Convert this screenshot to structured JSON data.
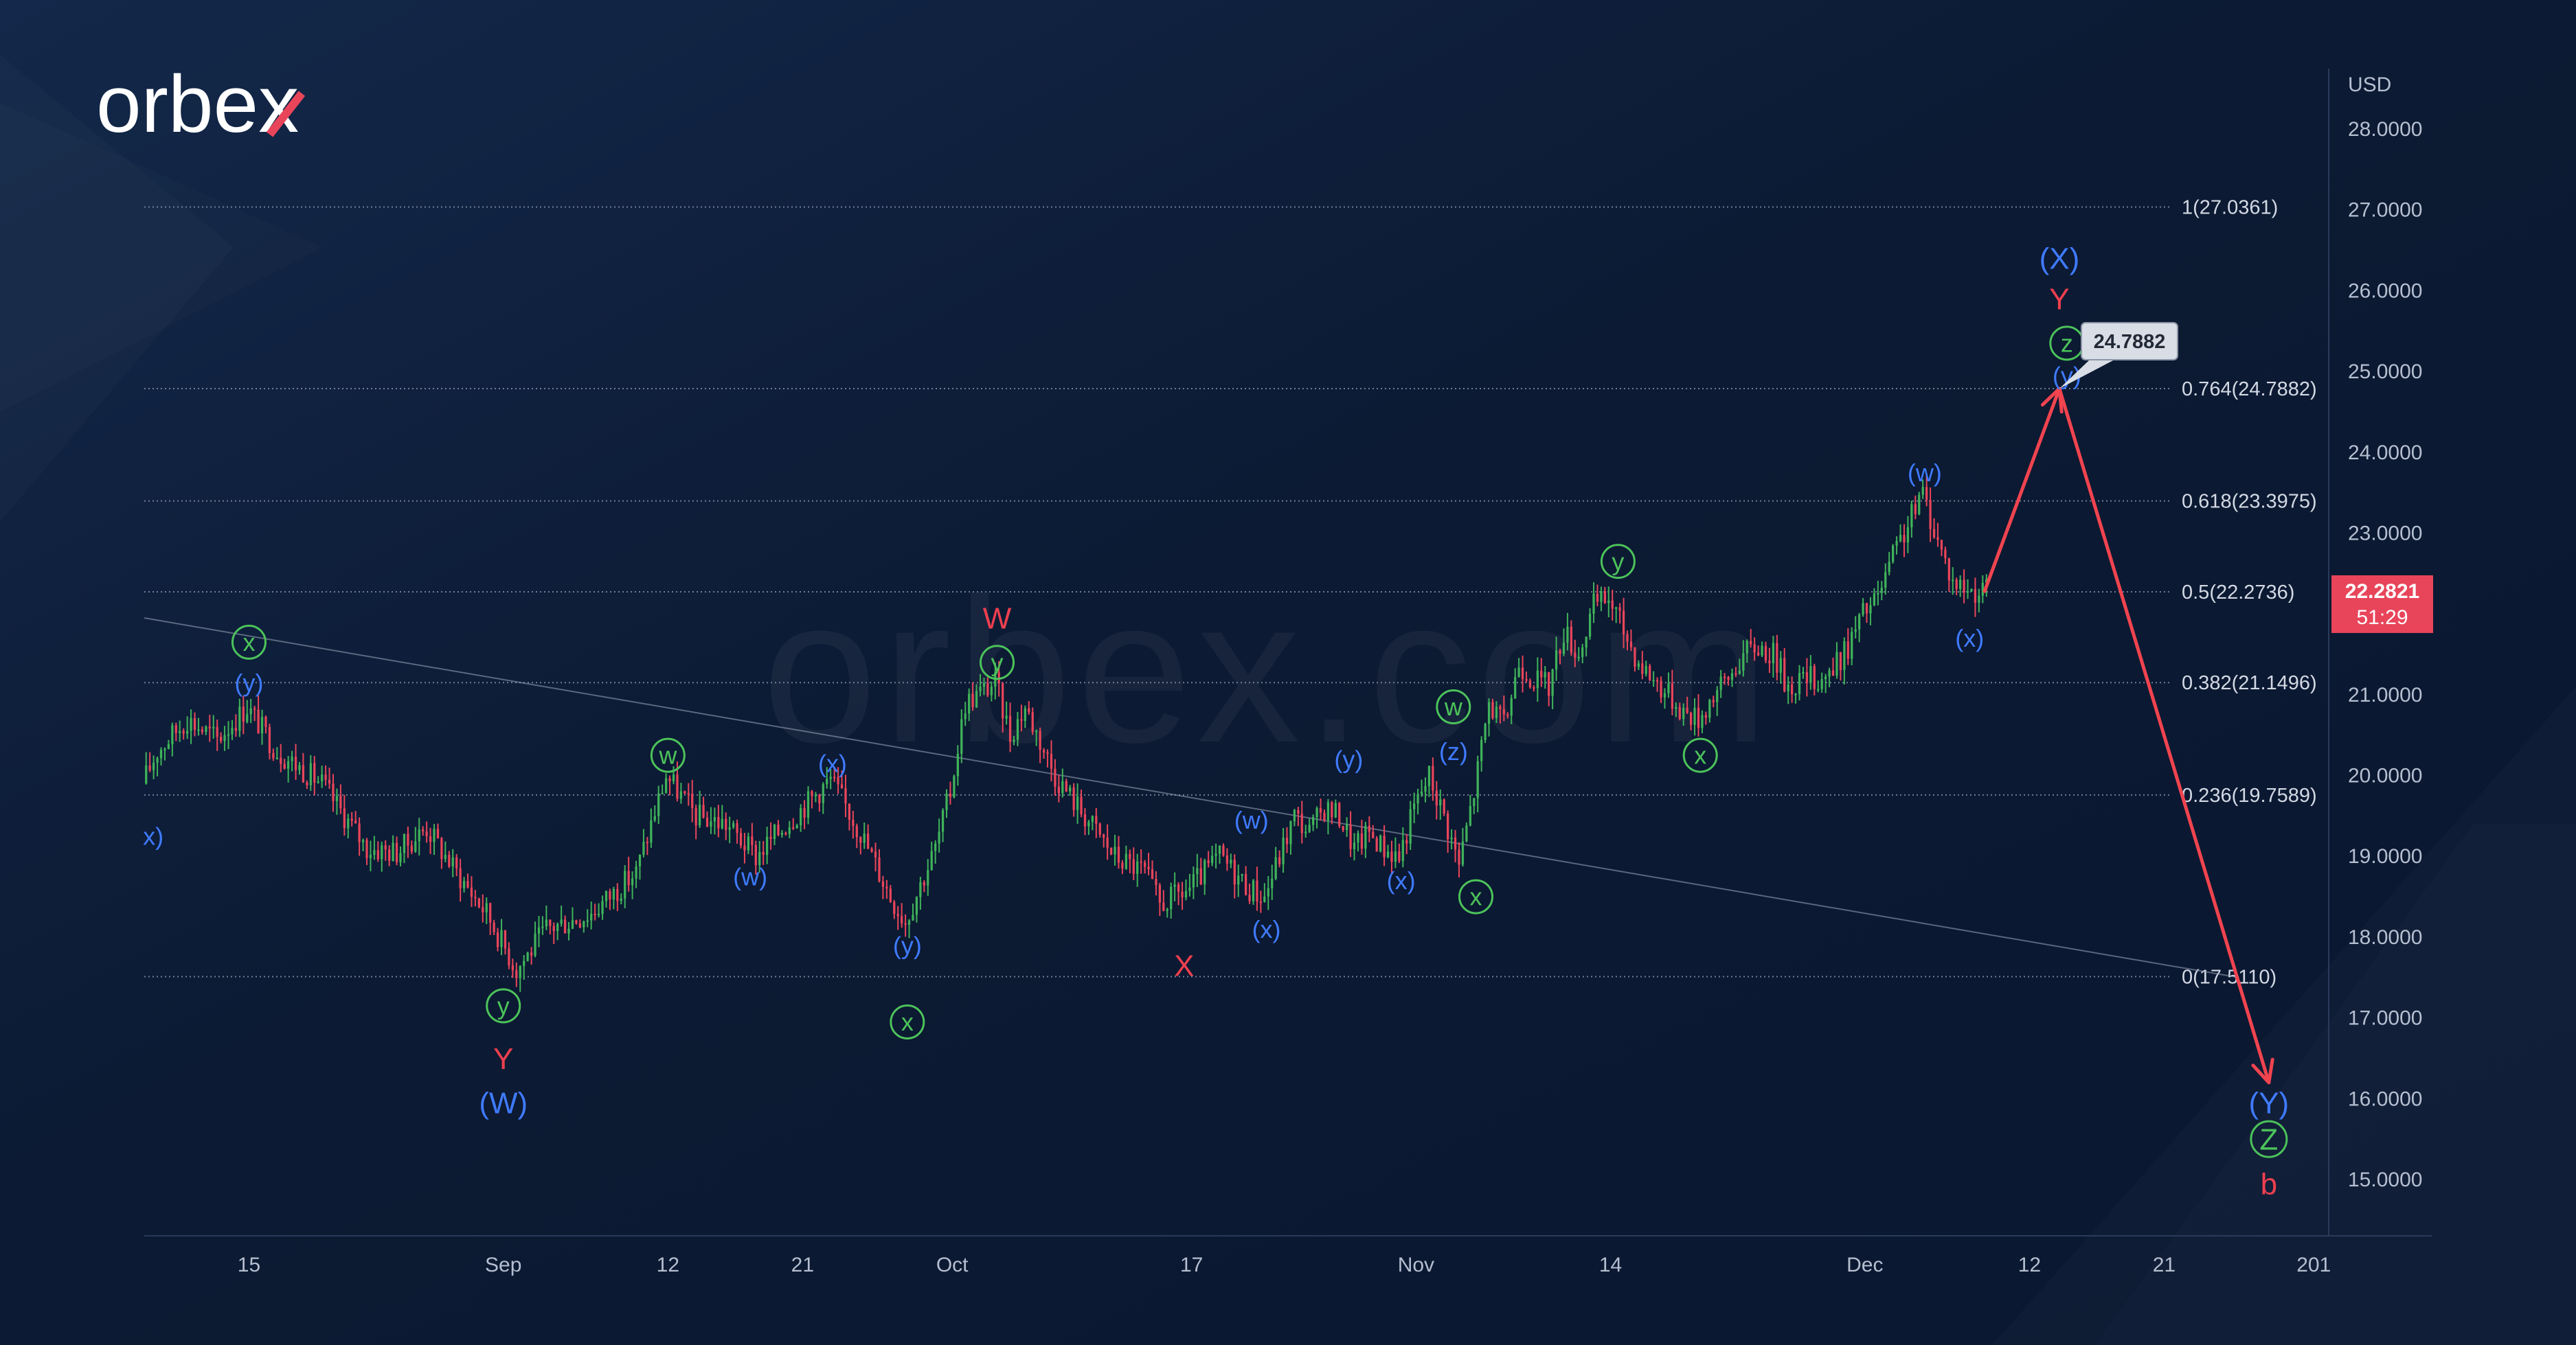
{
  "brand": {
    "logo_text": "orbex",
    "watermark": "orbex.com"
  },
  "colors": {
    "background": "#0c1a33",
    "bull_candle": "#3fb25a",
    "bear_candle": "#e8455a",
    "wave_blue": "#3f7bff",
    "wave_red": "#ee3f4f",
    "wave_green": "#4cc35a",
    "projection_arrow": "#f0444f",
    "price_tag": "#e8455a"
  },
  "chart_data": {
    "type": "candlestick",
    "currency_label": "USD",
    "y_ticks": [
      "28.0000",
      "27.0000",
      "26.0000",
      "25.0000",
      "24.0000",
      "23.0000",
      "22.0000",
      "21.0000",
      "20.0000",
      "19.0000",
      "18.0000",
      "17.0000",
      "16.0000",
      "15.0000"
    ],
    "ylim": [
      14.3,
      28.5
    ],
    "x_ticks": [
      {
        "label": "15",
        "day": 15
      },
      {
        "label": "Sep",
        "day": 32
      },
      {
        "label": "12",
        "day": 43
      },
      {
        "label": "21",
        "day": 52
      },
      {
        "label": "Oct",
        "day": 62
      },
      {
        "label": "17",
        "day": 78
      },
      {
        "label": "Nov",
        "day": 93
      },
      {
        "label": "14",
        "day": 106
      },
      {
        "label": "Dec",
        "day": 123
      },
      {
        "label": "12",
        "day": 134
      },
      {
        "label": "21",
        "day": 143
      },
      {
        "label": "201",
        "day": 153
      }
    ],
    "price_path": [
      [
        8,
        19.9
      ],
      [
        9,
        20.3
      ],
      [
        11,
        20.7
      ],
      [
        13,
        20.45
      ],
      [
        15,
        20.85
      ],
      [
        17,
        20.3
      ],
      [
        20,
        19.9
      ],
      [
        23,
        19.1
      ],
      [
        25,
        19.05
      ],
      [
        27,
        19.35
      ],
      [
        29,
        18.8
      ],
      [
        31,
        18.3
      ],
      [
        33,
        17.6
      ],
      [
        35,
        18.1
      ],
      [
        38,
        18.3
      ],
      [
        41,
        18.8
      ],
      [
        43,
        20.0
      ],
      [
        45,
        19.5
      ],
      [
        47,
        19.4
      ],
      [
        49,
        19.0
      ],
      [
        51,
        19.4
      ],
      [
        54,
        19.95
      ],
      [
        56,
        19.3
      ],
      [
        58,
        18.5
      ],
      [
        59,
        18.2
      ],
      [
        61,
        19.1
      ],
      [
        62,
        19.8
      ],
      [
        63,
        20.9
      ],
      [
        65,
        21.15
      ],
      [
        66,
        20.5
      ],
      [
        67,
        20.85
      ],
      [
        69,
        20.0
      ],
      [
        71,
        19.5
      ],
      [
        73,
        19.0
      ],
      [
        75,
        18.8
      ],
      [
        76,
        18.4
      ],
      [
        78,
        18.6
      ],
      [
        80,
        19.0
      ],
      [
        82,
        18.6
      ],
      [
        83,
        18.5
      ],
      [
        85,
        19.5
      ],
      [
        86,
        19.3
      ],
      [
        87,
        19.6
      ],
      [
        88,
        19.5
      ],
      [
        89,
        19.1
      ],
      [
        90,
        19.3
      ],
      [
        91,
        19.1
      ],
      [
        92,
        19.0
      ],
      [
        93,
        19.6
      ],
      [
        94,
        20.0
      ],
      [
        95,
        19.5
      ],
      [
        96,
        18.9
      ],
      [
        97,
        19.8
      ],
      [
        98,
        20.9
      ],
      [
        99,
        20.6
      ],
      [
        100,
        21.4
      ],
      [
        101,
        21.2
      ],
      [
        102,
        21.1
      ],
      [
        103,
        21.8
      ],
      [
        104,
        21.5
      ],
      [
        105,
        22.1
      ],
      [
        106,
        22.2
      ],
      [
        107,
        21.8
      ],
      [
        108,
        21.4
      ],
      [
        110,
        21.0
      ],
      [
        111,
        20.8
      ],
      [
        112,
        20.7
      ],
      [
        113,
        21.0
      ],
      [
        114,
        21.2
      ],
      [
        115,
        21.5
      ],
      [
        116,
        21.6
      ],
      [
        117,
        21.5
      ],
      [
        118,
        21.1
      ],
      [
        119,
        21.2
      ],
      [
        120,
        21.2
      ],
      [
        121,
        21.3
      ],
      [
        122,
        21.6
      ],
      [
        123,
        22.0
      ],
      [
        124,
        22.2
      ],
      [
        125,
        22.7
      ],
      [
        126,
        23.1
      ],
      [
        127,
        23.5
      ],
      [
        128,
        22.9
      ],
      [
        129,
        22.4
      ],
      [
        130,
        22.3
      ],
      [
        131,
        22.28
      ]
    ],
    "trendline": {
      "from": {
        "day": 8,
        "price": 21.95
      },
      "to": {
        "day": 148,
        "price": 17.5
      }
    },
    "fib_levels": [
      {
        "label": "1(27.0361)",
        "price": 27.0361
      },
      {
        "label": "0.764(24.7882)",
        "price": 24.7882
      },
      {
        "label": "0.618(23.3975)",
        "price": 23.3975
      },
      {
        "label": "0.5(22.2736)",
        "price": 22.2736
      },
      {
        "label": "0.382(21.1496)",
        "price": 21.1496
      },
      {
        "label": "0.236(19.7589)",
        "price": 19.7589
      },
      {
        "label": "0(17.5110)",
        "price": 17.511
      }
    ],
    "current_price": {
      "label": "22.2821",
      "countdown": "51:29",
      "price": 22.2821
    },
    "target_tag": {
      "label": "24.7882",
      "price": 24.7882
    },
    "projection": [
      {
        "day": 131,
        "price": 22.28
      },
      {
        "day": 136,
        "price": 24.7882
      },
      {
        "day": 150,
        "price": 16.2
      }
    ],
    "wave_labels": [
      {
        "text": "x)",
        "day": 8.6,
        "price": 19.25,
        "color": "blue",
        "circled": false,
        "size": "small"
      },
      {
        "text": "(y)",
        "day": 15,
        "price": 21.15,
        "color": "blue",
        "circled": false,
        "size": "small"
      },
      {
        "text": "x",
        "day": 15,
        "price": 21.65,
        "color": "green",
        "circled": true,
        "size": "small"
      },
      {
        "text": "y",
        "day": 32,
        "price": 17.15,
        "color": "green",
        "circled": true,
        "size": "small"
      },
      {
        "text": "Y",
        "day": 32,
        "price": 16.5,
        "color": "red",
        "circled": false,
        "size": "large"
      },
      {
        "text": "(W)",
        "day": 32,
        "price": 15.95,
        "color": "blue",
        "circled": false,
        "size": "large"
      },
      {
        "text": "w",
        "day": 43,
        "price": 20.25,
        "color": "green",
        "circled": true,
        "size": "small"
      },
      {
        "text": "(w)",
        "day": 48.5,
        "price": 18.75,
        "color": "blue",
        "circled": false,
        "size": "small"
      },
      {
        "text": "(x)",
        "day": 54,
        "price": 20.15,
        "color": "blue",
        "circled": false,
        "size": "small"
      },
      {
        "text": "(y)",
        "day": 59,
        "price": 17.9,
        "color": "blue",
        "circled": false,
        "size": "small"
      },
      {
        "text": "x",
        "day": 59,
        "price": 16.95,
        "color": "green",
        "circled": true,
        "size": "small"
      },
      {
        "text": "W",
        "day": 65,
        "price": 21.95,
        "color": "red",
        "circled": false,
        "size": "large"
      },
      {
        "text": "y",
        "day": 65,
        "price": 21.4,
        "color": "green",
        "circled": true,
        "size": "small"
      },
      {
        "text": "X",
        "day": 77.5,
        "price": 17.65,
        "color": "red",
        "circled": false,
        "size": "large"
      },
      {
        "text": "(w)",
        "day": 82,
        "price": 19.45,
        "color": "blue",
        "circled": false,
        "size": "small"
      },
      {
        "text": "(x)",
        "day": 83,
        "price": 18.1,
        "color": "blue",
        "circled": false,
        "size": "small"
      },
      {
        "text": "(y)",
        "day": 88.5,
        "price": 20.2,
        "color": "blue",
        "circled": false,
        "size": "small"
      },
      {
        "text": "(x)",
        "day": 92,
        "price": 18.7,
        "color": "blue",
        "circled": false,
        "size": "small"
      },
      {
        "text": "(z)",
        "day": 95.5,
        "price": 20.3,
        "color": "blue",
        "circled": false,
        "size": "small"
      },
      {
        "text": "w",
        "day": 95.5,
        "price": 20.85,
        "color": "green",
        "circled": true,
        "size": "small"
      },
      {
        "text": "x",
        "day": 97,
        "price": 18.5,
        "color": "green",
        "circled": true,
        "size": "small"
      },
      {
        "text": "y",
        "day": 106.5,
        "price": 22.65,
        "color": "green",
        "circled": true,
        "size": "small"
      },
      {
        "text": "x",
        "day": 112,
        "price": 20.25,
        "color": "green",
        "circled": true,
        "size": "small"
      },
      {
        "text": "(w)",
        "day": 127,
        "price": 23.75,
        "color": "blue",
        "circled": false,
        "size": "small"
      },
      {
        "text": "(x)",
        "day": 130,
        "price": 21.7,
        "color": "blue",
        "circled": false,
        "size": "small"
      },
      {
        "text": "(X)",
        "day": 136,
        "price": 26.4,
        "color": "blue",
        "circled": false,
        "size": "large"
      },
      {
        "text": "Y",
        "day": 136,
        "price": 25.9,
        "color": "red",
        "circled": false,
        "size": "large"
      },
      {
        "text": "z",
        "day": 136.5,
        "price": 25.35,
        "color": "green",
        "circled": true,
        "size": "small"
      },
      {
        "text": "(y)",
        "day": 136.5,
        "price": 24.95,
        "color": "blue",
        "circled": false,
        "size": "small"
      },
      {
        "text": "(Y)",
        "day": 150,
        "price": 15.95,
        "color": "blue",
        "circled": false,
        "size": "large"
      },
      {
        "text": "Z",
        "day": 150,
        "price": 15.5,
        "color": "green",
        "circled": true,
        "size": "large"
      },
      {
        "text": "b",
        "day": 150,
        "price": 14.95,
        "color": "red",
        "circled": false,
        "size": "large"
      }
    ]
  }
}
